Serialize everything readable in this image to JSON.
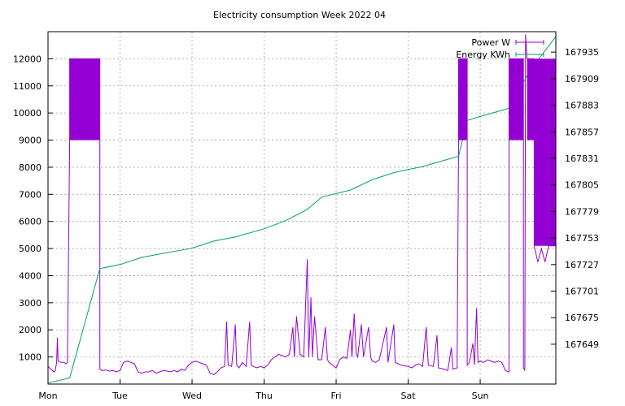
{
  "chart_data": {
    "type": "line",
    "title": "Electricity consumption Week 2022 04",
    "xlabel": "",
    "ylabel": "",
    "y2label": "",
    "grid": true,
    "legend_position": "top-right",
    "x_range": [
      0,
      7.05
    ],
    "ylim": [
      0,
      13000
    ],
    "y2lim": [
      167610,
      167955
    ],
    "x_ticks": [
      {
        "value": 0,
        "label": "Mon"
      },
      {
        "value": 1,
        "label": "Tue"
      },
      {
        "value": 2,
        "label": "Wed"
      },
      {
        "value": 3,
        "label": "Thu"
      },
      {
        "value": 4,
        "label": "Fri"
      },
      {
        "value": 5,
        "label": "Sat"
      },
      {
        "value": 6,
        "label": "Sun"
      }
    ],
    "y_ticks": [
      1000,
      2000,
      3000,
      4000,
      5000,
      6000,
      7000,
      8000,
      9000,
      10000,
      11000,
      12000
    ],
    "y2_ticks": [
      167649,
      167675,
      167701,
      167727,
      167753,
      167779,
      167805,
      167831,
      167857,
      167883,
      167909,
      167935
    ],
    "series": [
      {
        "name": "Power W",
        "axis": "left",
        "color": "#9400d3",
        "points": [
          [
            0,
            650
          ],
          [
            0.02,
            600
          ],
          [
            0.04,
            550
          ],
          [
            0.06,
            500
          ],
          [
            0.08,
            450
          ],
          [
            0.1,
            500
          ],
          [
            0.12,
            800
          ],
          [
            0.13,
            1700
          ],
          [
            0.14,
            850
          ],
          [
            0.18,
            800
          ],
          [
            0.22,
            800
          ],
          [
            0.25,
            750
          ],
          [
            0.27,
            800
          ],
          [
            0.3,
            9000
          ],
          [
            0.3,
            12000
          ],
          [
            0.72,
            12000
          ],
          [
            0.72,
            9000
          ],
          [
            0.72,
            550
          ],
          [
            0.75,
            500
          ],
          [
            0.8,
            520
          ],
          [
            0.85,
            480
          ],
          [
            0.9,
            500
          ],
          [
            0.95,
            450
          ],
          [
            1.0,
            500
          ],
          [
            1.05,
            800
          ],
          [
            1.1,
            850
          ],
          [
            1.15,
            800
          ],
          [
            1.2,
            750
          ],
          [
            1.25,
            450
          ],
          [
            1.3,
            400
          ],
          [
            1.35,
            450
          ],
          [
            1.4,
            450
          ],
          [
            1.45,
            500
          ],
          [
            1.5,
            400
          ],
          [
            1.55,
            450
          ],
          [
            1.6,
            500
          ],
          [
            1.65,
            480
          ],
          [
            1.7,
            450
          ],
          [
            1.75,
            500
          ],
          [
            1.8,
            450
          ],
          [
            1.85,
            550
          ],
          [
            1.9,
            500
          ],
          [
            1.95,
            700
          ],
          [
            2.0,
            800
          ],
          [
            2.05,
            850
          ],
          [
            2.1,
            800
          ],
          [
            2.15,
            750
          ],
          [
            2.2,
            700
          ],
          [
            2.25,
            400
          ],
          [
            2.3,
            350
          ],
          [
            2.35,
            450
          ],
          [
            2.4,
            600
          ],
          [
            2.45,
            650
          ],
          [
            2.48,
            2300
          ],
          [
            2.5,
            700
          ],
          [
            2.55,
            650
          ],
          [
            2.6,
            2200
          ],
          [
            2.62,
            700
          ],
          [
            2.65,
            600
          ],
          [
            2.7,
            800
          ],
          [
            2.75,
            650
          ],
          [
            2.8,
            2300
          ],
          [
            2.82,
            700
          ],
          [
            2.85,
            650
          ],
          [
            2.9,
            600
          ],
          [
            2.95,
            650
          ],
          [
            3.0,
            600
          ],
          [
            3.05,
            700
          ],
          [
            3.1,
            900
          ],
          [
            3.15,
            1000
          ],
          [
            3.2,
            1100
          ],
          [
            3.25,
            1050
          ],
          [
            3.3,
            1000
          ],
          [
            3.35,
            1100
          ],
          [
            3.4,
            2100
          ],
          [
            3.42,
            1000
          ],
          [
            3.45,
            2500
          ],
          [
            3.5,
            1100
          ],
          [
            3.55,
            1000
          ],
          [
            3.6,
            4600
          ],
          [
            3.62,
            1000
          ],
          [
            3.65,
            3200
          ],
          [
            3.67,
            1000
          ],
          [
            3.7,
            2500
          ],
          [
            3.75,
            900
          ],
          [
            3.8,
            900
          ],
          [
            3.85,
            2100
          ],
          [
            3.88,
            900
          ],
          [
            3.9,
            800
          ],
          [
            3.95,
            700
          ],
          [
            4.0,
            600
          ],
          [
            4.05,
            900
          ],
          [
            4.1,
            1000
          ],
          [
            4.15,
            950
          ],
          [
            4.2,
            2000
          ],
          [
            4.22,
            1000
          ],
          [
            4.25,
            2600
          ],
          [
            4.28,
            1100
          ],
          [
            4.3,
            1000
          ],
          [
            4.35,
            2200
          ],
          [
            4.38,
            1000
          ],
          [
            4.45,
            2100
          ],
          [
            4.48,
            1000
          ],
          [
            4.5,
            850
          ],
          [
            4.55,
            800
          ],
          [
            4.6,
            900
          ],
          [
            4.7,
            2100
          ],
          [
            4.72,
            800
          ],
          [
            4.8,
            2200
          ],
          [
            4.82,
            800
          ],
          [
            4.9,
            700
          ],
          [
            5.0,
            650
          ],
          [
            5.05,
            600
          ],
          [
            5.1,
            700
          ],
          [
            5.15,
            750
          ],
          [
            5.2,
            650
          ],
          [
            5.25,
            2100
          ],
          [
            5.28,
            700
          ],
          [
            5.35,
            650
          ],
          [
            5.4,
            1800
          ],
          [
            5.42,
            600
          ],
          [
            5.5,
            550
          ],
          [
            5.55,
            500
          ],
          [
            5.6,
            1350
          ],
          [
            5.62,
            550
          ],
          [
            5.68,
            600
          ],
          [
            5.7,
            9000
          ],
          [
            5.7,
            12000
          ],
          [
            5.82,
            12000
          ],
          [
            5.82,
            9000
          ],
          [
            5.82,
            700
          ],
          [
            5.85,
            800
          ],
          [
            5.9,
            1500
          ],
          [
            5.92,
            700
          ],
          [
            5.95,
            2800
          ],
          [
            5.97,
            800
          ],
          [
            6.0,
            850
          ],
          [
            6.05,
            800
          ],
          [
            6.1,
            900
          ],
          [
            6.15,
            850
          ],
          [
            6.2,
            800
          ],
          [
            6.25,
            850
          ],
          [
            6.3,
            800
          ],
          [
            6.35,
            500
          ],
          [
            6.4,
            450
          ],
          [
            6.4,
            9000
          ],
          [
            6.4,
            12000
          ],
          [
            6.6,
            12000
          ],
          [
            6.6,
            9000
          ],
          [
            6.6,
            600
          ],
          [
            6.62,
            500
          ],
          [
            6.63,
            12900
          ],
          [
            6.65,
            12000
          ],
          [
            6.75,
            12000
          ],
          [
            6.75,
            5100
          ],
          [
            6.8,
            4500
          ],
          [
            6.85,
            5000
          ],
          [
            6.9,
            4500
          ],
          [
            6.95,
            5100
          ],
          [
            7.05,
            5100
          ]
        ]
      },
      {
        "name": "Energy KWh",
        "axis": "right",
        "color": "#009e73",
        "points": [
          [
            0,
            167611
          ],
          [
            0.3,
            167616
          ],
          [
            0.72,
            167723
          ],
          [
            1.0,
            167727
          ],
          [
            1.3,
            167734
          ],
          [
            1.6,
            167738
          ],
          [
            2.0,
            167743
          ],
          [
            2.3,
            167750
          ],
          [
            2.6,
            167754
          ],
          [
            3.0,
            167762
          ],
          [
            3.3,
            167770
          ],
          [
            3.6,
            167781
          ],
          [
            3.8,
            167793
          ],
          [
            4.2,
            167800
          ],
          [
            4.5,
            167810
          ],
          [
            4.8,
            167817
          ],
          [
            5.2,
            167823
          ],
          [
            5.5,
            167829
          ],
          [
            5.7,
            167833
          ],
          [
            5.82,
            167868
          ],
          [
            6.0,
            167872
          ],
          [
            6.2,
            167876
          ],
          [
            6.4,
            167880
          ],
          [
            6.7,
            167918
          ],
          [
            7.05,
            167950
          ]
        ]
      }
    ]
  }
}
